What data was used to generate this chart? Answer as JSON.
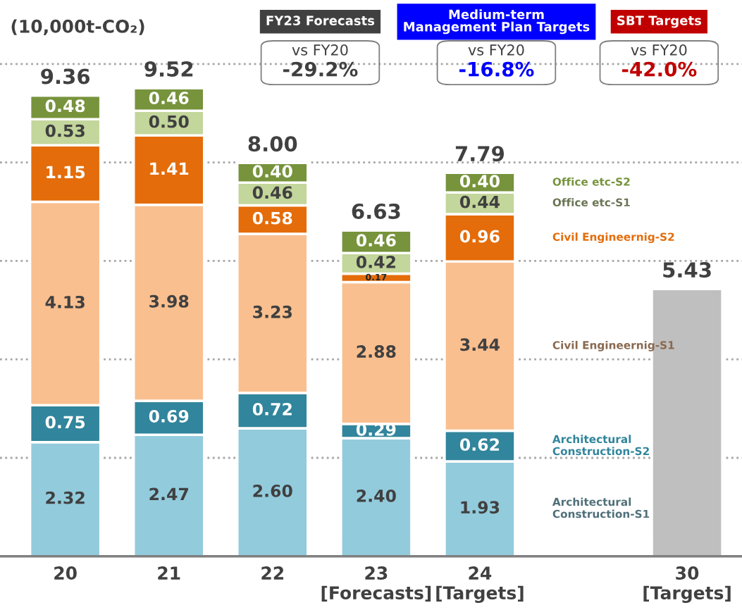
{
  "chart_data": {
    "type": "bar",
    "stacked": true,
    "ylabel": "(10,000t-CO₂)",
    "categories": [
      "20",
      "21",
      "22",
      "23\n[Forecasts]",
      "24\n[Targets]",
      null,
      "30\n[Targets]"
    ],
    "series": [
      {
        "name": "Architectural\nConstruction-S1",
        "color": "#92cbdc",
        "values": [
          2.32,
          2.47,
          2.6,
          2.4,
          1.93,
          null,
          null
        ],
        "value_labels": [
          "2.32",
          "2.47",
          "2.60",
          "2.40",
          "1.93",
          null,
          null
        ]
      },
      {
        "name": "Architectural\nConstruction-S2",
        "color": "#31859c",
        "values": [
          0.75,
          0.69,
          0.72,
          0.29,
          0.62,
          null,
          null
        ],
        "value_labels": [
          "0.75",
          "0.69",
          "0.72",
          "0.29",
          "0.62",
          null,
          null
        ]
      },
      {
        "name": "Civil Engineernig-S1",
        "color": "#f9bf8f",
        "values": [
          4.13,
          3.98,
          3.23,
          2.88,
          3.44,
          null,
          null
        ],
        "value_labels": [
          "4.13",
          "3.98",
          "3.23",
          "2.88",
          "3.44",
          null,
          null
        ]
      },
      {
        "name": "Civil Engineernig-S2",
        "color": "#e46c0a",
        "values": [
          1.15,
          1.41,
          0.58,
          0.17,
          0.96,
          null,
          null
        ],
        "value_labels": [
          "1.15",
          "1.41",
          "0.58",
          "0.17",
          "0.96",
          null,
          null
        ]
      },
      {
        "name": "Office etc-S1",
        "color": "#c3d69b",
        "values": [
          0.53,
          0.5,
          0.46,
          0.42,
          0.44,
          null,
          null
        ],
        "value_labels": [
          "0.53",
          "0.50",
          "0.46",
          "0.42",
          "0.44",
          null,
          null
        ]
      },
      {
        "name": "Office etc-S2",
        "color": "#77933c",
        "values": [
          0.48,
          0.46,
          0.4,
          0.46,
          0.4,
          null,
          null
        ],
        "value_labels": [
          "0.48",
          "0.46",
          "0.40",
          "0.46",
          "0.40",
          null,
          null
        ]
      },
      {
        "color": "#bfbfbf",
        "values": [
          null,
          null,
          null,
          null,
          null,
          null,
          5.43
        ],
        "value_labels": [
          null,
          null,
          null,
          null,
          null,
          null,
          null
        ]
      }
    ],
    "totals": [
      "9.36",
      "9.52",
      "8.00",
      "6.63",
      "7.79",
      null,
      "5.43"
    ],
    "ylim": [
      0,
      11.3
    ],
    "yticks": [
      {
        "value": 2,
        "label": null
      },
      {
        "value": 4,
        "label": null
      },
      {
        "value": 6,
        "label": null
      },
      {
        "value": 8,
        "label": null
      },
      {
        "value": 10,
        "label": null
      }
    ],
    "grid": "y",
    "line_style": "dotted",
    "tick_labels": "x",
    "annotations": [
      "FY23 Forecasts",
      "Medium-term\nManagement Plan Targets",
      "SBT Targets",
      "vs FY20",
      "-29.2%",
      "vs FY20",
      "-16.8%",
      "vs FY20",
      "-42.0%"
    ]
  }
}
